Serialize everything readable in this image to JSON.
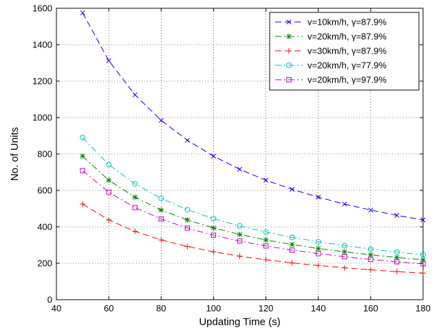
{
  "chart_data": {
    "type": "line",
    "xlabel": "Updating Time (s)",
    "ylabel": "No. of Units",
    "xlim": [
      40,
      180
    ],
    "ylim": [
      0,
      1600
    ],
    "xticks": [
      40,
      60,
      80,
      100,
      120,
      140,
      160,
      180
    ],
    "yticks": [
      0,
      200,
      400,
      600,
      800,
      1000,
      1200,
      1400,
      1600
    ],
    "grid": true,
    "legend_position": "top-right",
    "x": [
      50,
      60,
      70,
      80,
      90,
      100,
      110,
      120,
      130,
      140,
      150,
      160,
      170,
      180
    ],
    "series": [
      {
        "name": "v=10km/h, γ=87.9%",
        "color": "#0000ff",
        "dash": "dashed",
        "marker": "x",
        "values": [
          1575,
          1312,
          1125,
          984,
          875,
          788,
          716,
          656,
          606,
          563,
          525,
          492,
          463,
          438
        ]
      },
      {
        "name": "v=20km/h, γ=87.9%",
        "color": "#008000",
        "dash": "dashdot",
        "marker": "asterisk",
        "values": [
          788,
          656,
          563,
          492,
          438,
          394,
          358,
          328,
          303,
          281,
          263,
          246,
          232,
          219
        ]
      },
      {
        "name": "v=30km/h, γ=87.9%",
        "color": "#ff0000",
        "dash": "dashed",
        "marker": "plus",
        "values": [
          525,
          438,
          375,
          328,
          292,
          263,
          239,
          219,
          202,
          188,
          175,
          164,
          154,
          146
        ]
      },
      {
        "name": "v=20km/h, γ=77.9%",
        "color": "#00bfbf",
        "dash": "dashdot",
        "marker": "circle",
        "values": [
          890,
          742,
          636,
          556,
          494,
          445,
          405,
          371,
          342,
          318,
          297,
          278,
          262,
          247
        ]
      },
      {
        "name": "v=20km/h, γ=97.9%",
        "color": "#bf00bf",
        "dash": "dashdot",
        "marker": "square",
        "values": [
          708,
          590,
          506,
          443,
          393,
          354,
          322,
          295,
          272,
          253,
          236,
          221,
          208,
          197
        ]
      }
    ]
  }
}
